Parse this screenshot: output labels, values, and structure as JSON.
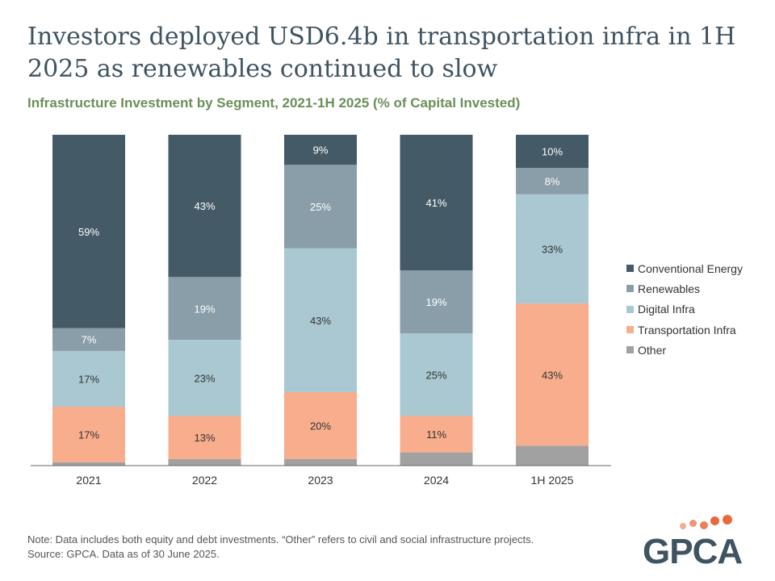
{
  "title": "Investors deployed USD6.4b in transportation infra in 1H 2025 as renewables continued to slow",
  "subtitle": "Infrastructure Investment by Segment, 2021-1H 2025 (% of Capital Invested)",
  "note_line1": "Note: Data includes both equity and debt investments. “Other” refers to civil and social infrastructure projects.",
  "note_line2": "Source: GPCA. Data as of 30 June 2025.",
  "logo_text": "GPCA",
  "colors": {
    "Conventional Energy": "#455a67",
    "Renewables": "#8a9ea9",
    "Digital Infra": "#a9c8d2",
    "Transportation Infra": "#f8ad8c",
    "Other": "#a1a1a1",
    "logo_dots": "#e8693e"
  },
  "chart_data": {
    "type": "bar",
    "stacked": true,
    "categories": [
      "2021",
      "2022",
      "2023",
      "2024",
      "1H 2025"
    ],
    "ylim": [
      0,
      100
    ],
    "legend_position": "right",
    "series": [
      {
        "name": "Other",
        "values": [
          1,
          2,
          2,
          4,
          6
        ],
        "labels": [
          "",
          "",
          "",
          "",
          ""
        ]
      },
      {
        "name": "Transportation Infra",
        "values": [
          17,
          13,
          20,
          11,
          43
        ],
        "labels": [
          "17%",
          "13%",
          "20%",
          "11%",
          "43%"
        ]
      },
      {
        "name": "Digital Infra",
        "values": [
          17,
          23,
          43,
          25,
          33
        ],
        "labels": [
          "17%",
          "23%",
          "43%",
          "25%",
          "33%"
        ]
      },
      {
        "name": "Renewables",
        "values": [
          7,
          19,
          25,
          19,
          8
        ],
        "labels": [
          "7%",
          "19%",
          "25%",
          "19%",
          "8%"
        ]
      },
      {
        "name": "Conventional Energy",
        "values": [
          59,
          43,
          9,
          41,
          10
        ],
        "labels": [
          "59%",
          "43%",
          "9%",
          "41%",
          "10%"
        ]
      }
    ],
    "legend_order": [
      "Conventional Energy",
      "Renewables",
      "Digital Infra",
      "Transportation Infra",
      "Other"
    ]
  }
}
